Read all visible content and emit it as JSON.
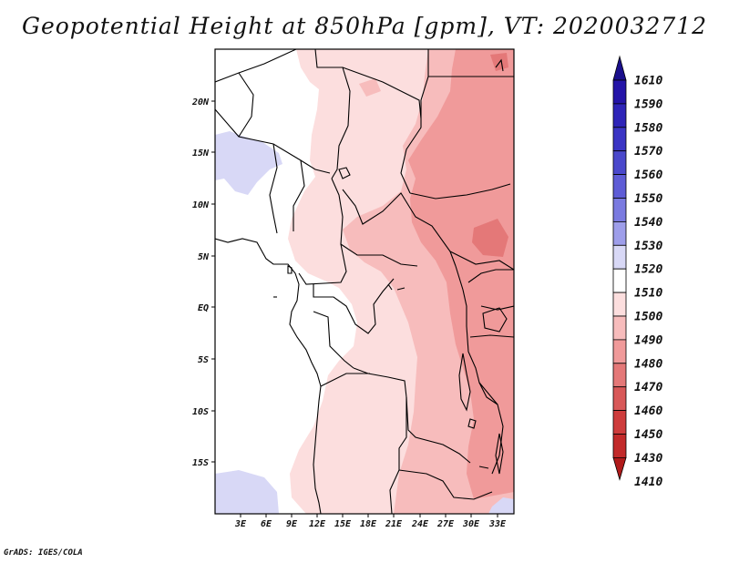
{
  "title": "Geopotential Height at 850hPa [gpm], VT: 2020032712",
  "footer": "GrADS: IGES/COLA",
  "chart_data": {
    "type": "heatmap",
    "title": "Geopotential Height at 850hPa [gpm], VT: 2020032712",
    "variable": "Geopotential Height",
    "level": "850hPa",
    "units": "gpm",
    "valid_time": "2020032712",
    "x_ticks": [
      "3E",
      "6E",
      "9E",
      "12E",
      "15E",
      "18E",
      "21E",
      "24E",
      "27E",
      "30E",
      "33E"
    ],
    "y_ticks": [
      "20N",
      "15N",
      "10N",
      "5N",
      "EQ",
      "5S",
      "10S",
      "15S"
    ],
    "xlim": [
      0,
      35
    ],
    "ylim": [
      -20,
      24
    ],
    "colorbar_levels": [
      "1610",
      "1590",
      "1580",
      "1570",
      "1560",
      "1550",
      "1540",
      "1530",
      "1520",
      "1510",
      "1500",
      "1490",
      "1480",
      "1470",
      "1460",
      "1450",
      "1430",
      "1410"
    ],
    "colors": {
      "c1600": "#1a0f8c",
      "c1590": "#2414a8",
      "c1580": "#2e24b8",
      "c1570": "#3a34c4",
      "c1560": "#4a48cc",
      "c1550": "#5e5cd6",
      "c1540": "#7a7ae0",
      "c1530": "#9e9eea",
      "c1520": "#d8d8f6",
      "c1510": "#ffffff",
      "c1500": "#fcdede",
      "c1490": "#f7bcbc",
      "c1480": "#f09a9a",
      "c1470": "#e47878",
      "c1460": "#d85858",
      "c1450": "#ce3c3c",
      "c1430": "#c22a2a",
      "c1410": "#b01a1a"
    }
  }
}
